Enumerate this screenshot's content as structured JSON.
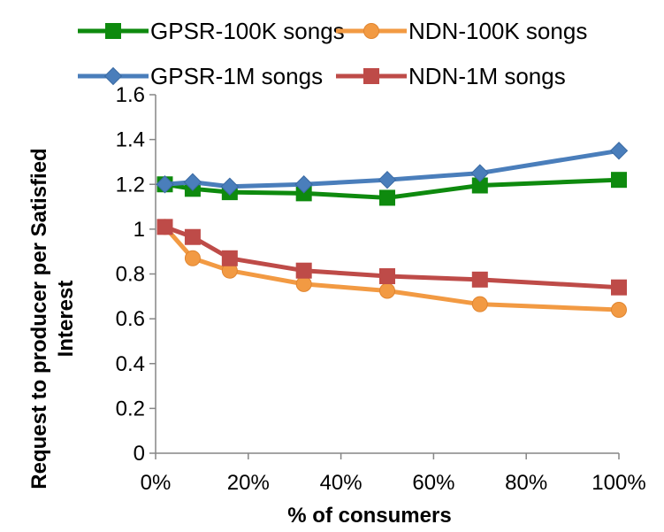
{
  "chart_data": {
    "type": "line",
    "title": "",
    "xlabel": "% of consumers",
    "ylabel_lines": [
      "Request to producer per Satisfied",
      "Interest"
    ],
    "x": [
      2,
      8,
      16,
      32,
      50,
      70,
      100
    ],
    "xlim": [
      0,
      100
    ],
    "ylim": [
      0,
      1.6
    ],
    "x_ticks": [
      0,
      20,
      40,
      60,
      80,
      100
    ],
    "x_tick_labels": [
      "0%",
      "20%",
      "40%",
      "60%",
      "80%",
      "100%"
    ],
    "y_ticks": [
      0,
      0.2,
      0.4,
      0.6,
      0.8,
      1.0,
      1.2,
      1.4,
      1.6
    ],
    "y_tick_labels": [
      "0",
      "0.2",
      "0.4",
      "0.6",
      "0.8",
      "1",
      "1.2",
      "1.4",
      "1.6"
    ],
    "grid": false,
    "legend_position": "top",
    "series": [
      {
        "name": "GPSR-100K songs",
        "marker": "square",
        "color": "#0e8a0e",
        "values": [
          1.2,
          1.18,
          1.165,
          1.16,
          1.14,
          1.195,
          1.22
        ]
      },
      {
        "name": "NDN-100K songs",
        "marker": "circle",
        "color": "#f29a43",
        "values": [
          1.01,
          0.87,
          0.815,
          0.755,
          0.725,
          0.665,
          0.64
        ]
      },
      {
        "name": "GPSR-1M songs",
        "marker": "diamond",
        "color": "#4a7ebb",
        "values": [
          1.2,
          1.21,
          1.19,
          1.2,
          1.22,
          1.25,
          1.35
        ]
      },
      {
        "name": "NDN-1M songs",
        "marker": "square",
        "color": "#be4b48",
        "values": [
          1.01,
          0.965,
          0.87,
          0.815,
          0.79,
          0.775,
          0.74
        ]
      }
    ]
  }
}
